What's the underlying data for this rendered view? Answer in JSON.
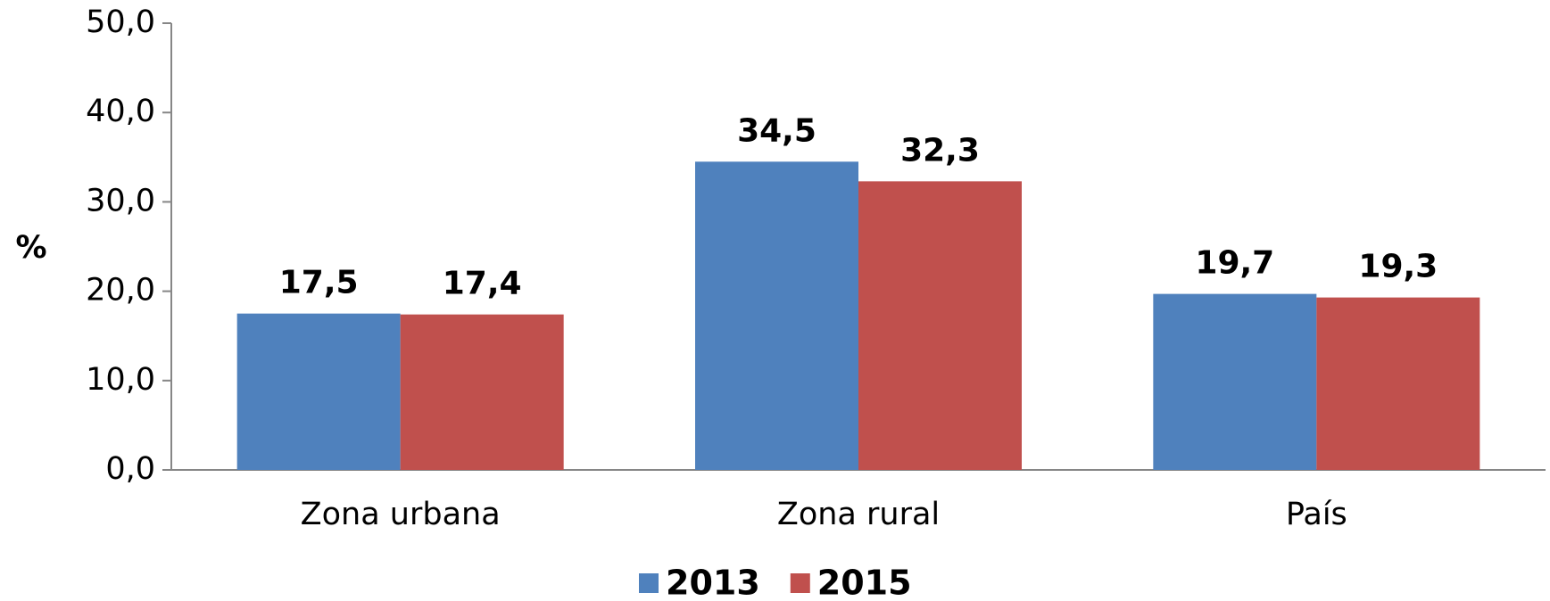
{
  "chart_data": {
    "type": "bar",
    "ylabel": "%",
    "categories": [
      "Zona urbana",
      "Zona rural",
      "País"
    ],
    "series": [
      {
        "name": "2013",
        "color": "#4f81bd",
        "values": [
          17.5,
          34.5,
          19.7
        ],
        "value_labels": [
          "17,5",
          "34,5",
          "19,7"
        ]
      },
      {
        "name": "2015",
        "color": "#c0504d",
        "values": [
          17.4,
          32.3,
          19.3
        ],
        "value_labels": [
          "17,4",
          "32,3",
          "19,3"
        ]
      }
    ],
    "ylim": [
      0,
      50
    ],
    "yticks": [
      {
        "value": 0,
        "label": "0,0"
      },
      {
        "value": 10,
        "label": "10,0"
      },
      {
        "value": 20,
        "label": "20,0"
      },
      {
        "value": 30,
        "label": "30,0"
      },
      {
        "value": 40,
        "label": "40,0"
      },
      {
        "value": 50,
        "label": "50,0"
      }
    ],
    "grid": false,
    "legend": "bottom"
  }
}
